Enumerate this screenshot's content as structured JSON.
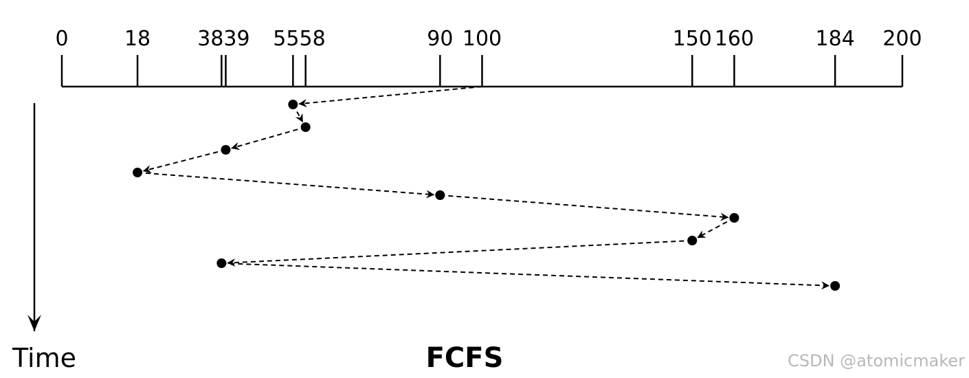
{
  "axis": {
    "ticks": [
      0,
      18,
      38,
      39,
      55,
      58,
      90,
      100,
      150,
      160,
      184,
      200
    ]
  },
  "start": 100,
  "sequence": [
    55,
    58,
    39,
    18,
    90,
    160,
    150,
    38,
    184
  ],
  "time_label": "Time",
  "title": "FCFS",
  "watermark": "CSDN @atomicmaker"
}
